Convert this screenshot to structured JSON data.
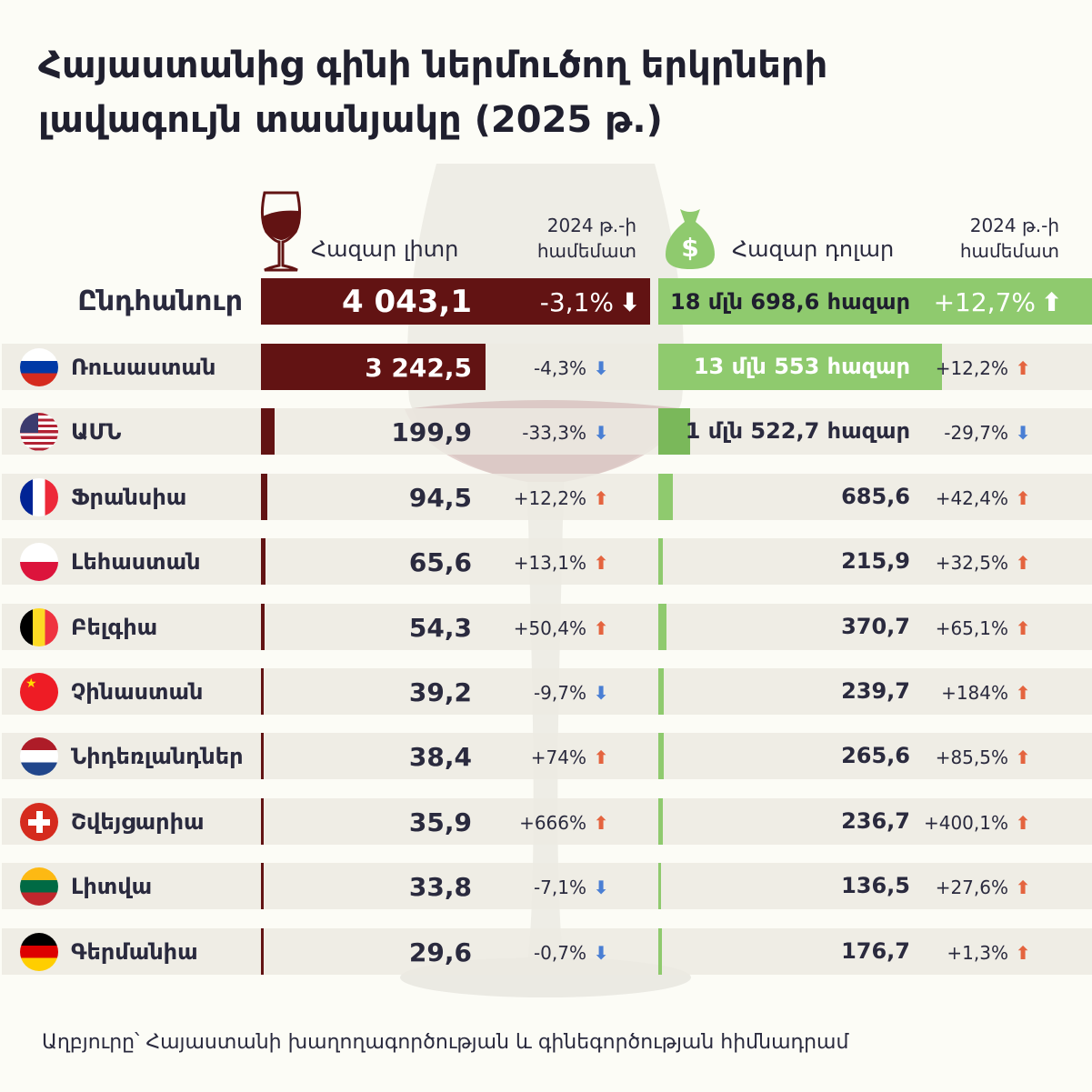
{
  "title": "Հայաստանից գինի ներմուծող երկրների լավագույն տասնյակը (2025 թ.)",
  "headers": {
    "liters": "Հազար լիտր",
    "dollars": "Հազար դոլար",
    "compare_line1": "2024 թ.-ի",
    "compare_line2": "համեմատ"
  },
  "icons": {
    "liters": "wine-glass-icon",
    "dollars": "money-bag-icon",
    "dollar_sign": "$"
  },
  "colors": {
    "liters_bar": "#621313",
    "dollars_bar": "#8fca6e",
    "up": "#e4643f",
    "down": "#4a7fd4"
  },
  "total": {
    "label": "Ընդհանուր",
    "liters": "4 043,1",
    "liters_change": "-3,1%",
    "liters_dir": "down",
    "dollars": "18 մլն 698,6 հազար",
    "dollars_change": "+12,7%",
    "dollars_dir": "up"
  },
  "rows": [
    {
      "country": "Ռուսաստան",
      "flag": "russia",
      "liters": "3 242,5",
      "liters_num": 3242.5,
      "liters_change": "-4,3%",
      "liters_dir": "down",
      "dollars": "13 մլն 553 հազար",
      "dollars_num": 13553,
      "dollars_change": "+12,2%",
      "dollars_dir": "up"
    },
    {
      "country": "ԱՄՆ",
      "flag": "usa",
      "liters": "199,9",
      "liters_num": 199.9,
      "liters_change": "-33,3%",
      "liters_dir": "down",
      "dollars": "1 մլն 522,7 հազար",
      "dollars_num": 1522.7,
      "dollars_change": "-29,7%",
      "dollars_dir": "down"
    },
    {
      "country": "Ֆրանսիա",
      "flag": "france",
      "liters": "94,5",
      "liters_num": 94.5,
      "liters_change": "+12,2%",
      "liters_dir": "up",
      "dollars": "685,6",
      "dollars_num": 685.6,
      "dollars_change": "+42,4%",
      "dollars_dir": "up"
    },
    {
      "country": "Լեհաստան",
      "flag": "poland",
      "liters": "65,6",
      "liters_num": 65.6,
      "liters_change": "+13,1%",
      "liters_dir": "up",
      "dollars": "215,9",
      "dollars_num": 215.9,
      "dollars_change": "+32,5%",
      "dollars_dir": "up"
    },
    {
      "country": "Բելգիա",
      "flag": "belgium",
      "liters": "54,3",
      "liters_num": 54.3,
      "liters_change": "+50,4%",
      "liters_dir": "up",
      "dollars": "370,7",
      "dollars_num": 370.7,
      "dollars_change": "+65,1%",
      "dollars_dir": "up"
    },
    {
      "country": "Չինաստան",
      "flag": "china",
      "liters": "39,2",
      "liters_num": 39.2,
      "liters_change": "-9,7%",
      "liters_dir": "down",
      "dollars": "239,7",
      "dollars_num": 239.7,
      "dollars_change": "+184%",
      "dollars_dir": "up"
    },
    {
      "country": "Նիդեռլանդներ",
      "flag": "netherlands",
      "liters": "38,4",
      "liters_num": 38.4,
      "liters_change": "+74%",
      "liters_dir": "up",
      "dollars": "265,6",
      "dollars_num": 265.6,
      "dollars_change": "+85,5%",
      "dollars_dir": "up"
    },
    {
      "country": "Շվեյցարիա",
      "flag": "switzerland",
      "liters": "35,9",
      "liters_num": 35.9,
      "liters_change": "+666%",
      "liters_dir": "up",
      "dollars": "236,7",
      "dollars_num": 236.7,
      "dollars_change": "+400,1%",
      "dollars_dir": "up"
    },
    {
      "country": "Լիտվա",
      "flag": "lithuania",
      "liters": "33,8",
      "liters_num": 33.8,
      "liters_change": "-7,1%",
      "liters_dir": "down",
      "dollars": "136,5",
      "dollars_num": 136.5,
      "dollars_change": "+27,6%",
      "dollars_dir": "up"
    },
    {
      "country": "Գերմանիա",
      "flag": "germany",
      "liters": "29,6",
      "liters_num": 29.6,
      "liters_change": "-0,7%",
      "liters_dir": "down",
      "dollars": "176,7",
      "dollars_num": 176.7,
      "dollars_change": "+1,3%",
      "dollars_dir": "up"
    }
  ],
  "footer": "Աղբյուրը՝ Հայաստանի խաղողագործության և գինեգործության հիմնադրամ"
}
